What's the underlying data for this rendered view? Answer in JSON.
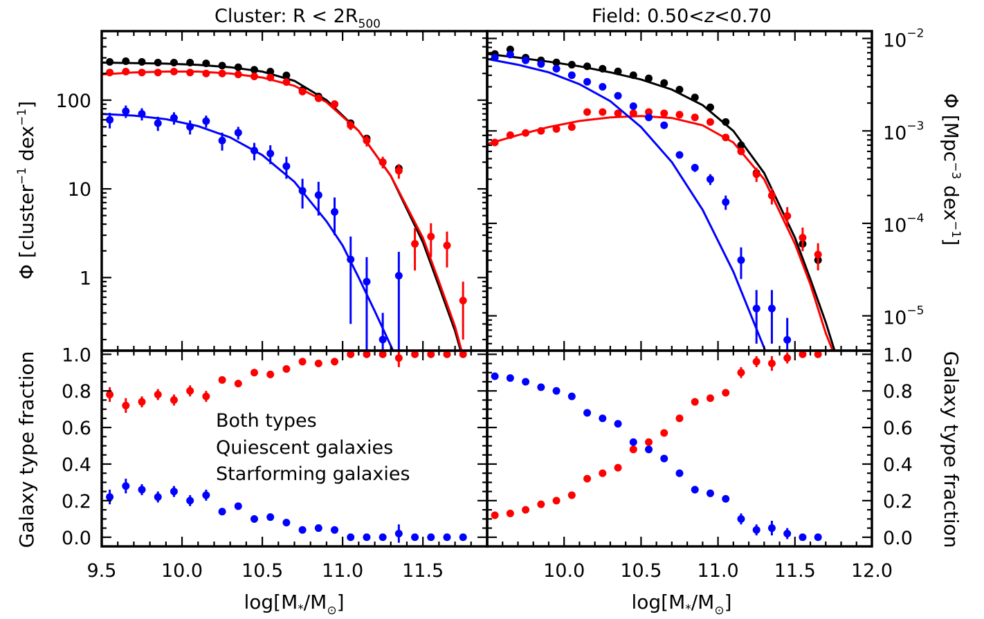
{
  "colors": {
    "both": "#000000",
    "quiescent": "#ff0000",
    "starforming": "#0000ff"
  },
  "titles": {
    "left_prefix": "Cluster:  R < 2R",
    "left_sub": "500",
    "right_prefix": "Field:  0.50<",
    "right_z": "z",
    "right_suffix": "<0.70"
  },
  "axes": {
    "x_label_main": "log[M",
    "x_label_star": "*",
    "x_label_mid": "/M",
    "x_label_sun": "⊙",
    "x_label_end": "]",
    "left_y_label": "Φ [cluster",
    "left_y_sup1": "−1",
    "left_y_mid": " dex",
    "left_y_sup2": "−1",
    "left_y_end": "]",
    "right_y_label": "Φ [Mpc",
    "right_y_sup1": "−3",
    "right_y_mid": " dex",
    "right_y_sup2": "−1",
    "right_y_end": "]",
    "fraction_label": "Galaxy type fraction",
    "left_x_ticks": [
      "9.5",
      "10.0",
      "10.5",
      "11.0",
      "11.5"
    ],
    "right_x_ticks": [
      "10.0",
      "10.5",
      "11.0",
      "11.5",
      "12.0"
    ],
    "left_y_ticks": [
      "1",
      "10",
      "100"
    ],
    "right_y_ticks": [
      {
        "base": "10",
        "exp": "−2"
      },
      {
        "base": "10",
        "exp": "−3"
      },
      {
        "base": "10",
        "exp": "−4"
      },
      {
        "base": "10",
        "exp": "−5"
      }
    ],
    "frac_ticks": [
      "0.0",
      "0.2",
      "0.4",
      "0.6",
      "0.8",
      "1.0"
    ]
  },
  "legend": {
    "both": "Both types",
    "quiescent": "Quiescent galaxies",
    "starforming": "Starforming galaxies"
  },
  "chart_data": [
    {
      "type": "scatter",
      "panel": "cluster-mass-function",
      "title": "Cluster:  R < 2R500",
      "xlabel": "log[M*/M⊙]",
      "ylabel": "Φ [cluster^-1 dex^-1]",
      "xlim": [
        9.5,
        11.9
      ],
      "ylim": [
        0.15,
        600
      ],
      "yscale": "log",
      "series": [
        {
          "name": "Both types",
          "color": "#000000",
          "x": [
            9.55,
            9.65,
            9.75,
            9.85,
            9.95,
            10.05,
            10.15,
            10.25,
            10.35,
            10.45,
            10.55,
            10.65,
            10.75,
            10.85,
            10.95,
            11.05,
            11.15,
            11.25,
            11.35
          ],
          "y": [
            270,
            275,
            270,
            265,
            265,
            265,
            260,
            245,
            235,
            220,
            210,
            190,
            130,
            110,
            90,
            55,
            37,
            20,
            17
          ],
          "fit": {
            "x": [
              9.5,
              9.7,
              9.9,
              10.1,
              10.3,
              10.5,
              10.7,
              10.9,
              11.1,
              11.3,
              11.5,
              11.6,
              11.7,
              11.75
            ],
            "y": [
              265,
              262,
              258,
              250,
              235,
              210,
              165,
              100,
              45,
              14,
              2.5,
              0.8,
              0.25,
              0.12
            ]
          }
        },
        {
          "name": "Quiescent galaxies",
          "color": "#ff0000",
          "x": [
            9.55,
            9.65,
            9.75,
            9.85,
            9.95,
            10.05,
            10.15,
            10.25,
            10.35,
            10.45,
            10.55,
            10.65,
            10.75,
            10.85,
            10.95,
            11.05,
            11.15,
            11.25,
            11.35,
            11.45,
            11.55,
            11.65,
            11.75
          ],
          "y": [
            205,
            210,
            205,
            205,
            210,
            205,
            200,
            200,
            195,
            185,
            180,
            160,
            125,
            105,
            90,
            52,
            35,
            20,
            16,
            2.4,
            2.9,
            2.3,
            0.55
          ],
          "yerr": [
            8,
            8,
            8,
            8,
            8,
            8,
            8,
            8,
            8,
            8,
            8,
            8,
            8,
            8,
            8,
            6,
            5,
            3,
            3,
            1.2,
            1.2,
            1.0,
            0.35
          ],
          "fit": {
            "x": [
              9.5,
              9.7,
              9.9,
              10.1,
              10.3,
              10.5,
              10.7,
              10.9,
              11.1,
              11.3,
              11.5,
              11.6,
              11.7,
              11.75
            ],
            "y": [
              195,
              205,
              210,
              210,
              200,
              180,
              145,
              95,
              45,
              14,
              2.8,
              0.9,
              0.28,
              0.13
            ]
          }
        },
        {
          "name": "Starforming galaxies",
          "color": "#0000ff",
          "x": [
            9.55,
            9.65,
            9.75,
            9.85,
            9.95,
            10.05,
            10.15,
            10.25,
            10.35,
            10.45,
            10.55,
            10.65,
            10.75,
            10.85,
            10.95,
            11.05,
            11.15,
            11.25,
            11.35
          ],
          "y": [
            60,
            75,
            70,
            55,
            63,
            50,
            58,
            35,
            43,
            27,
            25,
            18,
            9.5,
            8.5,
            5.5,
            1.6,
            0.9,
            0.2,
            1.05
          ],
          "yerr": [
            12,
            12,
            11,
            10,
            10,
            9,
            9,
            8,
            7,
            6,
            6,
            5,
            3.5,
            3.5,
            2.5,
            1.3,
            0.8,
            0.2,
            0.9
          ],
          "fit": {
            "x": [
              9.5,
              9.7,
              9.9,
              10.1,
              10.3,
              10.5,
              10.7,
              10.9,
              11.0,
              11.1,
              11.2,
              11.3,
              11.36
            ],
            "y": [
              70,
              67,
              61,
              51,
              38,
              24,
              12,
              4.3,
              2.3,
              1.0,
              0.42,
              0.17,
              0.1
            ]
          }
        }
      ]
    },
    {
      "type": "scatter",
      "panel": "field-mass-function",
      "title": "Field:  0.50<z<0.70",
      "xlabel": "log[M*/M⊙]",
      "ylabel": "Φ [Mpc^-3 dex^-1]",
      "xlim": [
        9.5,
        12.0
      ],
      "ylim": [
        4.2e-06,
        0.012
      ],
      "yscale": "log",
      "series": [
        {
          "name": "Both types",
          "color": "#000000",
          "x": [
            9.55,
            9.65,
            9.75,
            9.85,
            9.95,
            10.05,
            10.15,
            10.25,
            10.35,
            10.45,
            10.55,
            10.65,
            10.75,
            10.85,
            10.95,
            11.05,
            11.15,
            11.25,
            11.35,
            11.45,
            11.55,
            11.65
          ],
          "y": [
            0.0068,
            0.0076,
            0.0062,
            0.0058,
            0.0055,
            0.0052,
            0.005,
            0.0047,
            0.0044,
            0.004,
            0.0037,
            0.0033,
            0.0028,
            0.0023,
            0.0018,
            0.00125,
            0.0007,
            0.00035,
            0.0002,
            0.00012,
            6e-05,
            4e-05
          ],
          "fit": {
            "x": [
              9.5,
              9.7,
              9.9,
              10.1,
              10.3,
              10.5,
              10.7,
              10.9,
              11.1,
              11.3,
              11.5,
              11.6,
              11.7,
              11.8
            ],
            "y": [
              0.0068,
              0.0062,
              0.0056,
              0.005,
              0.0043,
              0.0036,
              0.0028,
              0.0019,
              0.001,
              0.00035,
              7e-05,
              2.5e-05,
              8.5e-06,
              2.5e-06
            ]
          }
        },
        {
          "name": "Quiescent galaxies",
          "color": "#ff0000",
          "x": [
            9.55,
            9.65,
            9.75,
            9.85,
            9.95,
            10.05,
            10.15,
            10.25,
            10.35,
            10.45,
            10.55,
            10.65,
            10.75,
            10.85,
            10.95,
            11.05,
            11.15,
            11.25,
            11.35,
            11.45,
            11.55,
            11.65
          ],
          "y": [
            0.00075,
            0.0009,
            0.00095,
            0.001,
            0.00105,
            0.0011,
            0.0016,
            0.0016,
            0.00155,
            0.00155,
            0.0016,
            0.00155,
            0.0015,
            0.0014,
            0.00125,
            0.00085,
            0.0006,
            0.00034,
            0.0002,
            0.00012,
            7e-05,
            4.6e-05
          ],
          "yerr": [
            4e-05,
            5e-05,
            5e-05,
            5e-05,
            5e-05,
            5e-05,
            7e-05,
            7e-05,
            7e-05,
            7e-05,
            7e-05,
            7e-05,
            7e-05,
            7e-05,
            6e-05,
            5e-05,
            4e-05,
            6e-05,
            4e-05,
            3e-05,
            2e-05,
            1.5e-05
          ],
          "fit": {
            "x": [
              9.5,
              9.7,
              9.9,
              10.1,
              10.3,
              10.5,
              10.7,
              10.9,
              11.1,
              11.3,
              11.5,
              11.6,
              11.7,
              11.75
            ],
            "y": [
              0.00072,
              0.0009,
              0.0011,
              0.00128,
              0.0014,
              0.00145,
              0.00138,
              0.00115,
              0.00075,
              0.0003,
              6e-05,
              2.2e-05,
              6.5e-06,
              4e-06
            ]
          }
        },
        {
          "name": "Starforming galaxies",
          "color": "#0000ff",
          "x": [
            9.55,
            9.65,
            9.75,
            9.85,
            9.95,
            10.05,
            10.15,
            10.25,
            10.35,
            10.45,
            10.55,
            10.65,
            10.75,
            10.85,
            10.95,
            11.05,
            11.15,
            11.25,
            11.35,
            11.45
          ],
          "y": [
            0.0062,
            0.0067,
            0.0058,
            0.0053,
            0.0047,
            0.004,
            0.0034,
            0.003,
            0.0024,
            0.00185,
            0.0014,
            0.00115,
            0.00055,
            0.0004,
            0.0003,
            0.00017,
            4e-05,
            1.2e-05,
            1.2e-05,
            5.5e-06
          ],
          "yerr": [
            0.0003,
            0.0003,
            0.0003,
            0.0003,
            0.0002,
            0.0002,
            0.0002,
            0.0002,
            0.00015,
            0.0001,
            0.0001,
            8e-05,
            5e-05,
            4e-05,
            4e-05,
            3e-05,
            1.5e-05,
            7e-06,
            7e-06,
            4e-06
          ],
          "fit": {
            "x": [
              9.5,
              9.7,
              9.9,
              10.1,
              10.3,
              10.5,
              10.7,
              10.9,
              11.1,
              11.3,
              11.4,
              11.46
            ],
            "y": [
              0.006,
              0.0052,
              0.0043,
              0.0032,
              0.0021,
              0.0011,
              0.00046,
              0.00014,
              3e-05,
              4.5e-06,
              1.5e-06,
              7e-07
            ]
          }
        }
      ]
    },
    {
      "type": "scatter",
      "panel": "cluster-fraction",
      "xlabel": "log[M*/M⊙]",
      "ylabel": "Galaxy type fraction",
      "xlim": [
        9.5,
        11.9
      ],
      "ylim": [
        -0.05,
        1.02
      ],
      "series": [
        {
          "name": "Quiescent galaxies",
          "color": "#ff0000",
          "x": [
            9.55,
            9.65,
            9.75,
            9.85,
            9.95,
            10.05,
            10.15,
            10.25,
            10.35,
            10.45,
            10.55,
            10.65,
            10.75,
            10.85,
            10.95,
            11.05,
            11.15,
            11.25,
            11.35,
            11.45,
            11.55,
            11.65,
            11.75
          ],
          "y": [
            0.78,
            0.72,
            0.74,
            0.78,
            0.75,
            0.8,
            0.77,
            0.86,
            0.84,
            0.9,
            0.89,
            0.92,
            0.96,
            0.95,
            0.96,
            1.0,
            1.0,
            1.0,
            0.98,
            1.0,
            1.0,
            1.0,
            1.0
          ],
          "yerr": [
            0.04,
            0.04,
            0.03,
            0.03,
            0.03,
            0.03,
            0.03,
            0.02,
            0.02,
            0.02,
            0.02,
            0.02,
            0.02,
            0.02,
            0.02,
            0.02,
            0.02,
            0.02,
            0.05,
            0,
            0,
            0,
            0
          ]
        },
        {
          "name": "Starforming galaxies",
          "color": "#0000ff",
          "x": [
            9.55,
            9.65,
            9.75,
            9.85,
            9.95,
            10.05,
            10.15,
            10.25,
            10.35,
            10.45,
            10.55,
            10.65,
            10.75,
            10.85,
            10.95,
            11.05,
            11.15,
            11.25,
            11.35,
            11.45,
            11.55,
            11.65,
            11.75
          ],
          "y": [
            0.22,
            0.28,
            0.26,
            0.22,
            0.25,
            0.2,
            0.23,
            0.14,
            0.17,
            0.1,
            0.11,
            0.08,
            0.04,
            0.05,
            0.04,
            0.0,
            0.0,
            0.0,
            0.02,
            0.0,
            0.0,
            0.0,
            0.0
          ],
          "yerr": [
            0.04,
            0.04,
            0.03,
            0.03,
            0.03,
            0.03,
            0.03,
            0.02,
            0.02,
            0.02,
            0.02,
            0.02,
            0.02,
            0.02,
            0.02,
            0.02,
            0.0,
            0.0,
            0.05,
            0,
            0,
            0,
            0
          ]
        }
      ]
    },
    {
      "type": "scatter",
      "panel": "field-fraction",
      "xlabel": "log[M*/M⊙]",
      "ylabel": "Galaxy type fraction",
      "xlim": [
        9.5,
        12.0
      ],
      "ylim": [
        -0.05,
        1.02
      ],
      "series": [
        {
          "name": "Quiescent galaxies",
          "color": "#ff0000",
          "x": [
            9.55,
            9.65,
            9.75,
            9.85,
            9.95,
            10.05,
            10.15,
            10.25,
            10.35,
            10.45,
            10.55,
            10.65,
            10.75,
            10.85,
            10.95,
            11.05,
            11.15,
            11.25,
            11.35,
            11.45,
            11.55,
            11.65
          ],
          "y": [
            0.12,
            0.13,
            0.15,
            0.18,
            0.2,
            0.23,
            0.32,
            0.35,
            0.38,
            0.48,
            0.52,
            0.57,
            0.65,
            0.74,
            0.76,
            0.79,
            0.9,
            0.96,
            0.95,
            0.98,
            1.0,
            1.0
          ],
          "yerr": [
            0.01,
            0.01,
            0.01,
            0.01,
            0.01,
            0.01,
            0.01,
            0.01,
            0.01,
            0.01,
            0.01,
            0.01,
            0.02,
            0.02,
            0.02,
            0.02,
            0.03,
            0.03,
            0.04,
            0.03,
            0,
            0
          ]
        },
        {
          "name": "Starforming galaxies",
          "color": "#0000ff",
          "x": [
            9.55,
            9.65,
            9.75,
            9.85,
            9.95,
            10.05,
            10.15,
            10.25,
            10.35,
            10.45,
            10.55,
            10.65,
            10.75,
            10.85,
            10.95,
            11.05,
            11.15,
            11.25,
            11.35,
            11.45,
            11.55,
            11.65
          ],
          "y": [
            0.88,
            0.87,
            0.85,
            0.82,
            0.8,
            0.77,
            0.68,
            0.65,
            0.62,
            0.52,
            0.48,
            0.43,
            0.35,
            0.26,
            0.24,
            0.21,
            0.1,
            0.04,
            0.05,
            0.02,
            0.0,
            0.0
          ],
          "yerr": [
            0.01,
            0.01,
            0.01,
            0.01,
            0.01,
            0.01,
            0.01,
            0.01,
            0.01,
            0.01,
            0.01,
            0.01,
            0.02,
            0.02,
            0.02,
            0.02,
            0.03,
            0.03,
            0.04,
            0.03,
            0,
            0
          ]
        }
      ]
    }
  ]
}
